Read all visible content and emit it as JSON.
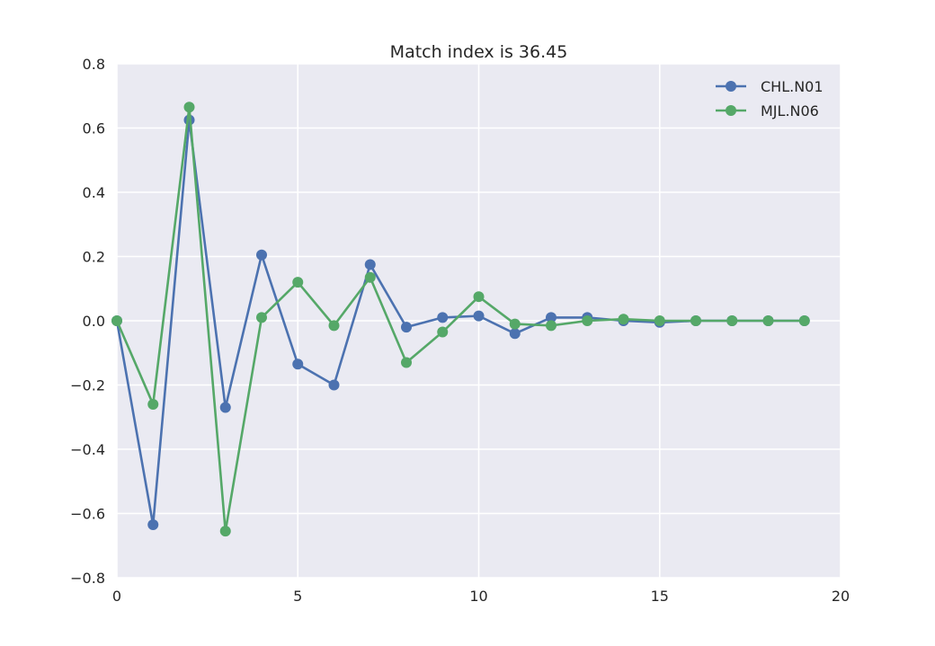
{
  "chart_data": {
    "type": "line",
    "title": "Match index is 36.45",
    "xlabel": "",
    "ylabel": "",
    "xlim": [
      0,
      20
    ],
    "ylim": [
      -0.8,
      0.8
    ],
    "xticks": [
      0,
      5,
      10,
      15,
      20
    ],
    "yticks": [
      0.8,
      0.6,
      0.4,
      0.2,
      0.0,
      -0.2,
      -0.4,
      -0.6,
      -0.8
    ],
    "ytick_labels": [
      "0.8",
      "0.6",
      "0.4",
      "0.2",
      "0.0",
      "−0.2",
      "−0.4",
      "−0.6",
      "−0.8"
    ],
    "grid": true,
    "legend_position": "top-right",
    "x": [
      0,
      1,
      2,
      3,
      4,
      5,
      6,
      7,
      8,
      9,
      10,
      11,
      12,
      13,
      14,
      15,
      16,
      17,
      18,
      19
    ],
    "series": [
      {
        "name": "CHL.N01",
        "color": "#4c72b0",
        "values": [
          0.0,
          -0.635,
          0.625,
          -0.27,
          0.205,
          -0.135,
          -0.2,
          0.175,
          -0.02,
          0.01,
          0.015,
          -0.04,
          0.01,
          0.01,
          0.0,
          -0.005,
          0.0,
          0.0,
          0.0,
          0.0
        ]
      },
      {
        "name": "MJL.N06",
        "color": "#55a868",
        "values": [
          0.0,
          -0.26,
          0.665,
          -0.655,
          0.01,
          0.12,
          -0.015,
          0.135,
          -0.13,
          -0.035,
          0.075,
          -0.01,
          -0.015,
          0.0,
          0.005,
          0.0,
          0.0,
          0.0,
          0.0,
          0.0
        ]
      }
    ]
  }
}
